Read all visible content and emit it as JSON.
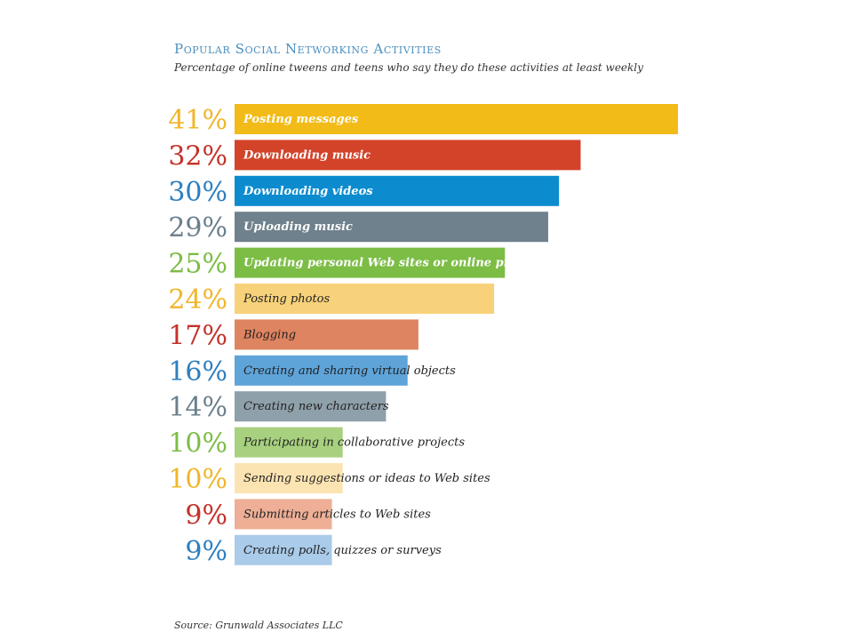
{
  "chart_data": {
    "type": "bar",
    "orientation": "horizontal",
    "title": "Popular Social Networking Activities",
    "subtitle": "Percentage of online tweens and teens who say they do these activities at least weekly",
    "source": "Source: Grunwald Associates LLC",
    "categories": [
      "Posting messages",
      "Downloading music",
      "Downloading videos",
      "Uploading music",
      "Updating personal Web sites or online profiles",
      "Posting photos",
      "Blogging",
      "Creating and sharing virtual objects",
      "Creating new characters",
      "Participating in collaborative projects",
      "Sending suggestions or ideas to Web sites",
      "Submitting articles to Web sites",
      "Creating polls, quizzes or surveys"
    ],
    "values": [
      41,
      32,
      30,
      29,
      25,
      24,
      17,
      16,
      14,
      10,
      10,
      9,
      9
    ],
    "value_labels": [
      "41%",
      "32%",
      "30%",
      "29%",
      "25%",
      "24%",
      "17%",
      "16%",
      "14%",
      "10%",
      "10%",
      "9%",
      "9%"
    ],
    "bar_colors": [
      "#f2bb17",
      "#d2432a",
      "#0c8ccf",
      "#6e818c",
      "#7cbd45",
      "#f8d27a",
      "#df8460",
      "#5ea4d9",
      "#8ea0aa",
      "#a8d17f",
      "#fce4b2",
      "#eeaf96",
      "#aacbe9"
    ],
    "label_colors": [
      "#f0b62a",
      "#c4322a",
      "#2e7fbf",
      "#6b7f8c",
      "#7cbd45",
      "#f0b62a",
      "#c4322a",
      "#2e7fbf",
      "#6b7f8c",
      "#7cbd45",
      "#f0b62a",
      "#c4322a",
      "#2e7fbf"
    ],
    "bar_text_colors": [
      "#ffffff",
      "#ffffff",
      "#ffffff",
      "#ffffff",
      "#ffffff",
      "#222222",
      "#222222",
      "#222222",
      "#222222",
      "#222222",
      "#222222",
      "#222222",
      "#222222"
    ],
    "grid": false,
    "legend": "none"
  }
}
